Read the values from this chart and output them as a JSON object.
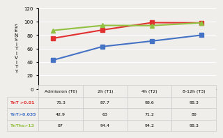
{
  "x_labels": [
    "Admission (T0)",
    "2h (T1)",
    "4h (T2)",
    "8-12h (T3)"
  ],
  "x_values": [
    0,
    1,
    2,
    3
  ],
  "series": [
    {
      "label": "TnT >0.01",
      "values": [
        75.3,
        87.7,
        98.6,
        98.3
      ],
      "color": "#e03030",
      "marker": "s"
    },
    {
      "label": "TnT>0.035",
      "values": [
        42.9,
        63,
        71.2,
        80
      ],
      "color": "#4472c4",
      "marker": "s"
    },
    {
      "label": "TnThs>13",
      "values": [
        87,
        94.4,
        94.2,
        98.3
      ],
      "color": "#92c040",
      "marker": "^"
    }
  ],
  "ylabel": "S\nE\nN\nS\nI\nT\nI\nV\nI\nT\nY",
  "ylim": [
    0,
    120
  ],
  "yticks": [
    0,
    20,
    40,
    60,
    80,
    100,
    120
  ],
  "table_header": [
    "Admission (T0)",
    "2h (T1)",
    "4h (T2)",
    "8-12h (T3)"
  ],
  "table_rows": [
    [
      "TnT >0.01",
      "75.3",
      "87.7",
      "98.6",
      "98.3"
    ],
    [
      "TnT>0.035",
      "42.9",
      "63",
      "71.2",
      "80"
    ],
    [
      "TnThs>13",
      "87",
      "94.4",
      "94.2",
      "98.3"
    ]
  ],
  "row_colors": [
    "#e03030",
    "#4472c4",
    "#92c040"
  ],
  "background_color": "#f0eeeb"
}
